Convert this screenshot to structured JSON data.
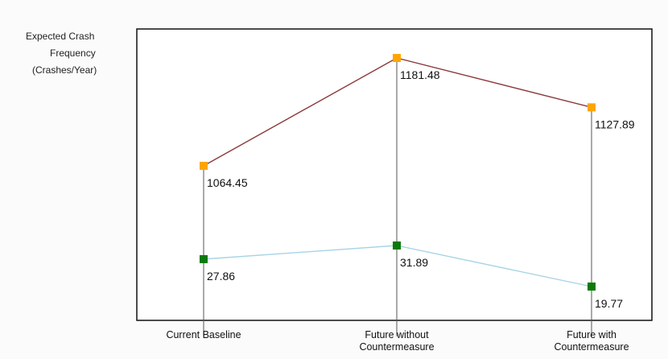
{
  "chart_data": {
    "type": "line",
    "title": "",
    "xlabel": "",
    "ylabel_lines": [
      "Expected Crash",
      "Frequency",
      "(Crashes/Year)"
    ],
    "categories": [
      "Current Baseline",
      "Future without Countermeasure",
      "Future with Countermeasure"
    ],
    "category_label_lines": [
      [
        "Current Baseline"
      ],
      [
        "Future without",
        "Countermeasure"
      ],
      [
        "Future with",
        "Countermeasure"
      ]
    ],
    "series": [
      {
        "values": [
          1064.45,
          1181.48,
          1127.89
        ],
        "labels": [
          "1064.45",
          "1181.48",
          "1127.89"
        ],
        "line_color": "#8b3a3a",
        "marker_color": "#ffa500"
      },
      {
        "values": [
          27.86,
          31.89,
          19.77
        ],
        "labels": [
          "27.86",
          "31.89",
          "19.77"
        ],
        "line_color": "#a8d4e6",
        "marker_color": "#0b7a0b"
      }
    ],
    "drop_lines": true,
    "axis_broken": true,
    "grid": false,
    "legend": "none"
  }
}
